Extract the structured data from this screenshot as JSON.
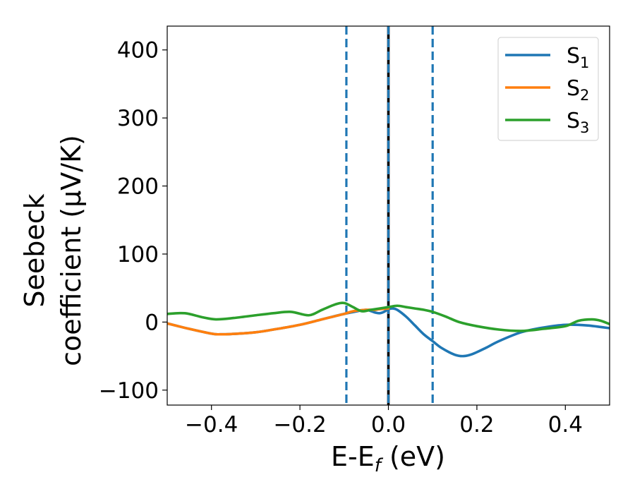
{
  "chart_data": {
    "type": "line",
    "title": "",
    "xlabel": "E-E",
    "xlabel_sub": "f",
    "xlabel_unit": " (eV)",
    "ylabel_line1": "Seebeck",
    "ylabel_line2": "coefficient  (μV/K)",
    "xlim": [
      -0.5,
      0.5
    ],
    "ylim": [
      -122,
      435
    ],
    "xticks": [
      -0.4,
      -0.2,
      0.0,
      0.2,
      0.4
    ],
    "xtick_labels": [
      "−0.4",
      "−0.2",
      "0.0",
      "0.2",
      "0.4"
    ],
    "yticks": [
      -100,
      0,
      100,
      200,
      300,
      400
    ],
    "ytick_labels": [
      "−100",
      "0",
      "100",
      "200",
      "300",
      "400"
    ],
    "grid": false,
    "legend_position": "top-right",
    "vlines": [
      {
        "x": -0.095,
        "color": "#1f77b4",
        "style": "dashed"
      },
      {
        "x": 0.0,
        "color": "#000000",
        "style": "solid"
      },
      {
        "x": 0.0,
        "color": "#1f77b4",
        "style": "dashed"
      },
      {
        "x": 0.1,
        "color": "#1f77b4",
        "style": "dashed"
      }
    ],
    "series": [
      {
        "name": "S",
        "name_sub": "1",
        "color": "#1f77b4",
        "x": [
          -0.5,
          -0.45,
          -0.4,
          -0.38,
          -0.34,
          -0.3,
          -0.26,
          -0.2,
          -0.15,
          -0.1,
          -0.07,
          -0.05,
          -0.03,
          -0.02,
          -0.01,
          0.0,
          0.01,
          0.02,
          0.04,
          0.06,
          0.08,
          0.1,
          0.12,
          0.15,
          0.17,
          0.19,
          0.22,
          0.25,
          0.3,
          0.35,
          0.4,
          0.45,
          0.5
        ],
        "y": [
          -2,
          -10,
          -17,
          -18,
          -17,
          -15,
          -11,
          -4,
          4,
          12,
          16,
          18,
          14,
          13,
          15,
          19,
          20,
          18,
          8,
          -5,
          -18,
          -28,
          -38,
          -48,
          -50,
          -47,
          -38,
          -28,
          -15,
          -8,
          -4,
          -5,
          -9
        ]
      },
      {
        "name": "S",
        "name_sub": "2",
        "color": "#ff7f0e",
        "x": [
          -0.5,
          -0.45,
          -0.4,
          -0.38,
          -0.34,
          -0.3,
          -0.26,
          -0.2,
          -0.15,
          -0.1,
          -0.08,
          -0.05,
          -0.03,
          -0.02,
          0.0
        ],
        "y": [
          -2,
          -10,
          -17,
          -18,
          -17,
          -15,
          -11,
          -4,
          4,
          12,
          16,
          18,
          18,
          19,
          20
        ]
      },
      {
        "name": "S",
        "name_sub": "3",
        "color": "#2ca02c",
        "x": [
          -0.5,
          -0.46,
          -0.42,
          -0.39,
          -0.35,
          -0.3,
          -0.26,
          -0.22,
          -0.18,
          -0.15,
          -0.12,
          -0.1,
          -0.08,
          -0.06,
          -0.04,
          -0.02,
          0.0,
          0.02,
          0.04,
          0.06,
          0.08,
          0.1,
          0.13,
          0.16,
          0.2,
          0.25,
          0.3,
          0.35,
          0.4,
          0.43,
          0.46,
          0.48,
          0.5
        ],
        "y": [
          12,
          13,
          7,
          4,
          6,
          10,
          13,
          15,
          10,
          18,
          26,
          28,
          22,
          16,
          18,
          20,
          22,
          24,
          22,
          20,
          18,
          15,
          8,
          0,
          -6,
          -11,
          -13,
          -10,
          -6,
          2,
          4,
          2,
          -3
        ]
      }
    ]
  }
}
